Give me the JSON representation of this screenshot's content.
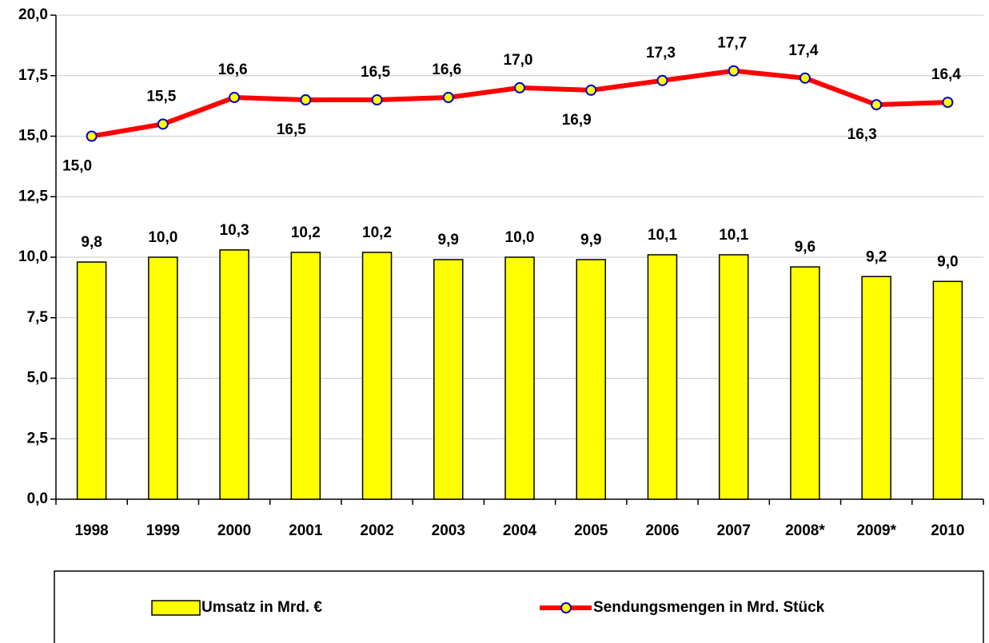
{
  "chart_data": {
    "type": "bar",
    "categories": [
      "1998",
      "1999",
      "2000",
      "2001",
      "2002",
      "2003",
      "2004",
      "2005",
      "2006",
      "2007",
      "2008*",
      "2009*",
      "2010"
    ],
    "series": [
      {
        "name": "Umsatz in Mrd. €",
        "type": "bar",
        "color": "#ffff00",
        "values": [
          9.8,
          10.0,
          10.3,
          10.2,
          10.2,
          9.9,
          10.0,
          9.9,
          10.1,
          10.1,
          9.6,
          9.2,
          9.0
        ],
        "value_labels": [
          "9,8",
          "10,0",
          "10,3",
          "10,2",
          "10,2",
          "9,9",
          "10,0",
          "9,9",
          "10,1",
          "10,1",
          "9,6",
          "9,2",
          "9,0"
        ]
      },
      {
        "name": "Sendungsmengen in Mrd. Stück",
        "type": "line",
        "color": "#ff0000",
        "values": [
          15.0,
          15.5,
          16.6,
          16.5,
          16.5,
          16.6,
          17.0,
          16.9,
          17.3,
          17.7,
          17.4,
          16.3,
          16.4
        ],
        "value_labels": [
          "15,0",
          "15,5",
          "16,6",
          "16,5",
          "16,5",
          "16,6",
          "17,0",
          "16,9",
          "17,3",
          "17,7",
          "17,4",
          "16,3",
          "16,4"
        ]
      }
    ],
    "ylim": [
      0,
      20
    ],
    "yticks": [
      {
        "value": 0,
        "label": "0,0"
      },
      {
        "value": 2.5,
        "label": "2,5"
      },
      {
        "value": 5,
        "label": "5,0"
      },
      {
        "value": 7.5,
        "label": "7,5"
      },
      {
        "value": 10,
        "label": "10,0"
      },
      {
        "value": 12.5,
        "label": "12,5"
      },
      {
        "value": 15,
        "label": "15,0"
      },
      {
        "value": 17.5,
        "label": "17,5"
      },
      {
        "value": 20,
        "label": "20,0"
      }
    ],
    "grid": true,
    "legend": "bottom"
  }
}
